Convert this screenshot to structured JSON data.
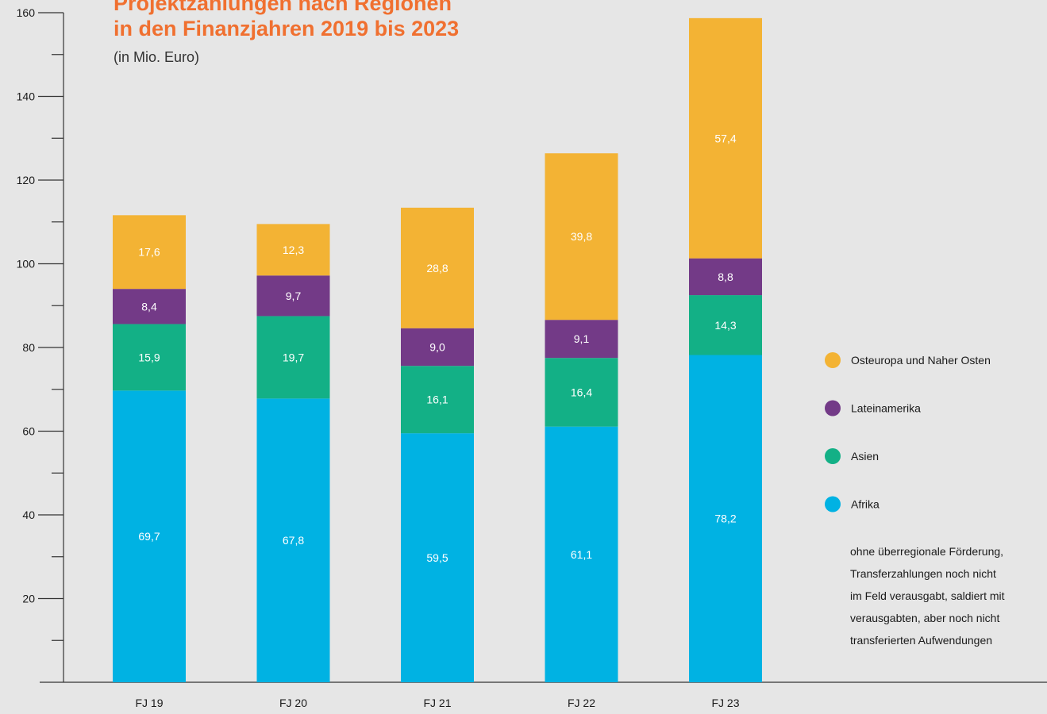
{
  "chart_data": {
    "type": "stacked-bar",
    "title": [
      "Projektzahlungen nach Regionen",
      "in den Finanzjahren 2019 bis 2023"
    ],
    "subtitle": "(in Mio. Euro)",
    "categories": [
      "FJ 19",
      "FJ 20",
      "FJ 21",
      "FJ 22",
      "FJ 23"
    ],
    "series": [
      {
        "name": "Afrika",
        "color": "#00b2e3",
        "values": [
          69.7,
          67.8,
          59.5,
          61.1,
          78.2
        ],
        "value_labels": [
          "69,7",
          "67,8",
          "59,5",
          "61,1",
          "78,2"
        ]
      },
      {
        "name": "Asien",
        "color": "#13b086",
        "values": [
          15.9,
          19.7,
          16.1,
          16.4,
          14.3
        ],
        "value_labels": [
          "15,9",
          "19,7",
          "16,1",
          "16,4",
          "14,3"
        ]
      },
      {
        "name": "Lateinamerika",
        "color": "#733a87",
        "values": [
          8.4,
          9.7,
          9.0,
          9.1,
          8.8
        ],
        "value_labels": [
          "8,4",
          "9,7",
          "9,0",
          "9,1",
          "8,8"
        ]
      },
      {
        "name": "Osteuropa und Naher Osten",
        "color": "#f3b334",
        "values": [
          17.6,
          12.3,
          28.8,
          39.8,
          57.4
        ],
        "value_labels": [
          "17,6",
          "12,3",
          "28,8",
          "39,8",
          "57,4"
        ]
      }
    ],
    "ylim": [
      0,
      160
    ],
    "yticks": [
      20,
      40,
      60,
      80,
      100,
      120,
      140,
      160
    ],
    "yticks_minor": [
      10,
      30,
      50,
      70,
      90,
      110,
      130,
      150
    ],
    "legend": "right",
    "note": [
      "ohne überregionale Förderung,",
      "Transferzahlungen noch nicht",
      "im Feld verausgabt, saldiert mit",
      "verausgabten, aber noch nicht",
      "transferierten Aufwendungen"
    ]
  }
}
